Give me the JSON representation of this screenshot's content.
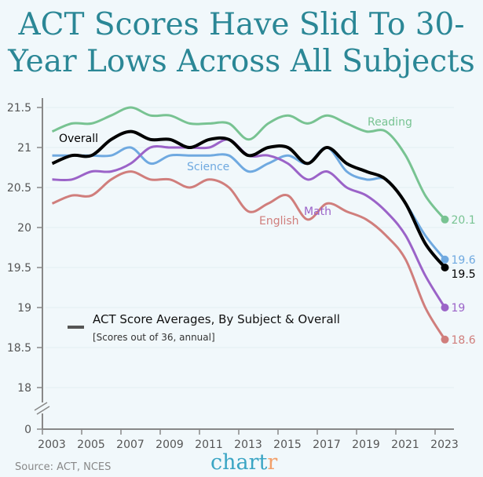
{
  "title": "ACT Scores Have Slid To 30-Year Lows Across All Subjects",
  "source": "Source: ACT, NCES",
  "logo": {
    "main": "chart",
    "accent": "r"
  },
  "chart_data": {
    "type": "line",
    "title": "ACT Scores Have Slid To 30-Year Lows Across All Subjects",
    "legend_title": "ACT Score Averages, By Subject & Overall",
    "legend_subtitle": "[Scores out of 36, annual]",
    "xlabel": "",
    "ylabel": "",
    "x": [
      2003,
      2004,
      2005,
      2006,
      2007,
      2008,
      2009,
      2010,
      2011,
      2012,
      2013,
      2014,
      2015,
      2016,
      2017,
      2018,
      2019,
      2020,
      2021,
      2022,
      2023
    ],
    "x_ticks": [
      "2003",
      "2005",
      "2007",
      "2009",
      "2011",
      "2013",
      "2015",
      "2017",
      "2019",
      "2021",
      "2023"
    ],
    "y_ticks": [
      "0",
      "18",
      "18.5",
      "19",
      "19.5",
      "20",
      "20.5",
      "21",
      "21.5"
    ],
    "ylim": [
      18,
      21.6
    ],
    "axis_break": true,
    "series": [
      {
        "name": "Reading",
        "color": "#78c392",
        "end_label": "20.1",
        "values": [
          21.2,
          21.3,
          21.3,
          21.4,
          21.5,
          21.4,
          21.4,
          21.3,
          21.3,
          21.3,
          21.1,
          21.3,
          21.4,
          21.3,
          21.4,
          21.3,
          21.2,
          21.2,
          20.9,
          20.4,
          20.1
        ]
      },
      {
        "name": "Science",
        "color": "#6fa9e0",
        "end_label": "19.6",
        "values": [
          20.9,
          20.9,
          20.9,
          20.9,
          21.0,
          20.8,
          20.9,
          20.9,
          20.9,
          20.9,
          20.7,
          20.8,
          20.9,
          20.8,
          21.0,
          20.7,
          20.6,
          20.6,
          20.3,
          19.9,
          19.6
        ]
      },
      {
        "name": "Math",
        "color": "#9b63c8",
        "end_label": "19",
        "values": [
          20.6,
          20.6,
          20.7,
          20.7,
          20.8,
          21.0,
          21.0,
          21.0,
          21.0,
          21.1,
          20.9,
          20.9,
          20.8,
          20.6,
          20.7,
          20.5,
          20.4,
          20.2,
          19.9,
          19.4,
          19.0
        ]
      },
      {
        "name": "English",
        "color": "#d07e7c",
        "end_label": "18.6",
        "values": [
          20.3,
          20.4,
          20.4,
          20.6,
          20.7,
          20.6,
          20.6,
          20.5,
          20.6,
          20.5,
          20.2,
          20.3,
          20.4,
          20.1,
          20.3,
          20.2,
          20.1,
          19.9,
          19.6,
          19.0,
          18.6
        ]
      },
      {
        "name": "Overall",
        "color": "#000000",
        "end_label": "19.5",
        "values": [
          20.8,
          20.9,
          20.9,
          21.1,
          21.2,
          21.1,
          21.1,
          21.0,
          21.1,
          21.1,
          20.9,
          21.0,
          21.0,
          20.8,
          21.0,
          20.8,
          20.7,
          20.6,
          20.3,
          19.8,
          19.5
        ]
      }
    ]
  }
}
